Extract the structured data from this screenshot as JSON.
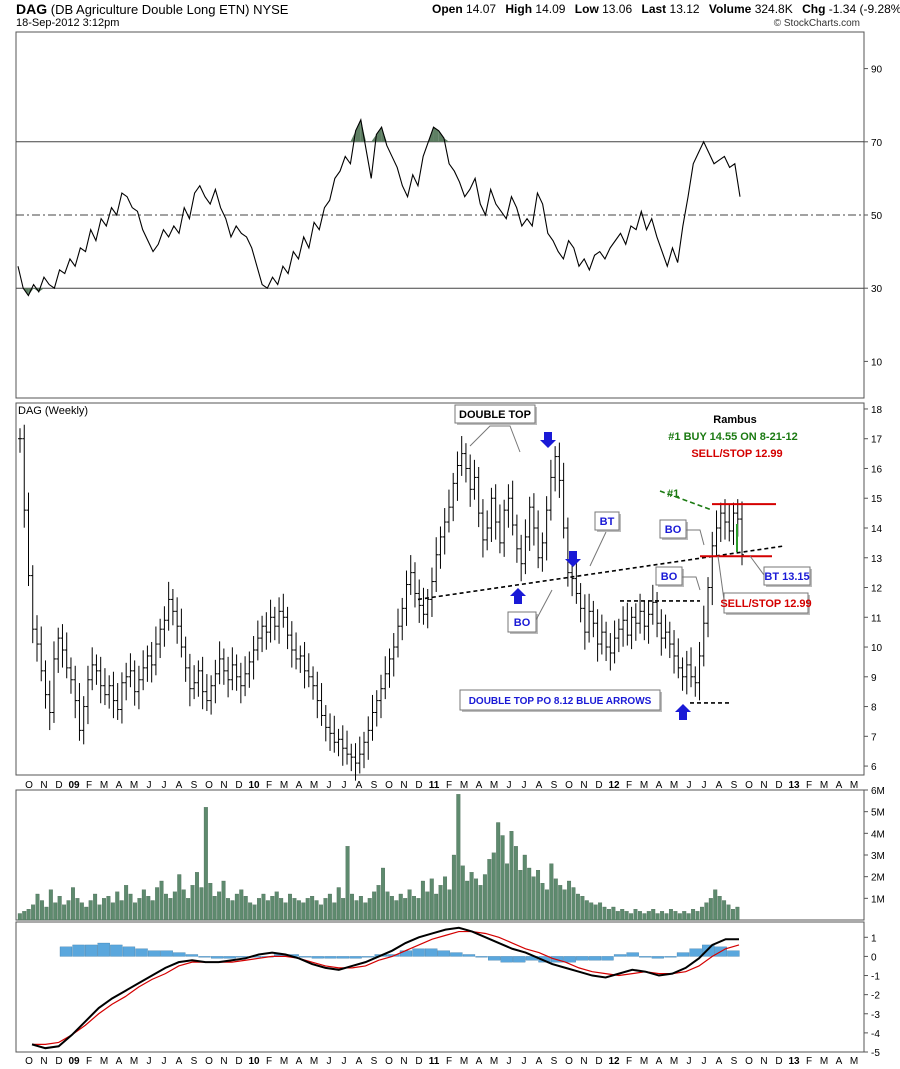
{
  "header": {
    "symbol": "DAG",
    "name": "(DB Agriculture Double Long ETN)",
    "exchange": "NYSE",
    "datetime": "18-Sep-2012 3:12pm",
    "open_label": "Open",
    "open": "14.07",
    "high_label": "High",
    "high": "14.09",
    "low_label": "Low",
    "low": "13.06",
    "last_label": "Last",
    "last": "13.12",
    "volume_label": "Volume",
    "volume": "324.8K",
    "chg_label": "Chg",
    "chg": "-1.34 (-9.28%)",
    "copyright": "© StockCharts.com"
  },
  "chart_data": [
    {
      "type": "line",
      "panel": "rsi",
      "ylim": [
        0,
        100
      ],
      "ticks": [
        "90",
        "70",
        "50",
        "30",
        "10"
      ],
      "tick_values": [
        90,
        70,
        50,
        30,
        10
      ],
      "ref_lines": [
        70,
        50,
        30
      ],
      "series": [
        {
          "values": [
            36,
            30,
            28,
            31,
            29,
            33,
            31,
            30,
            35,
            34,
            38,
            36,
            41,
            40,
            46,
            43,
            49,
            47,
            52,
            50,
            56,
            55,
            52,
            51,
            46,
            43,
            40,
            42,
            46,
            44,
            47,
            45,
            52,
            49,
            56,
            58,
            55,
            53,
            57,
            52,
            49,
            44,
            47,
            45,
            44,
            41,
            36,
            31,
            30,
            33,
            31,
            36,
            34,
            40,
            38,
            44,
            41,
            48,
            46,
            52,
            54,
            60,
            62,
            66,
            64,
            73,
            76,
            68,
            60,
            72,
            74,
            69,
            66,
            63,
            58,
            55,
            61,
            58,
            66,
            70,
            74,
            73,
            71,
            64,
            62,
            59,
            55,
            57,
            60,
            53,
            50,
            57,
            53,
            51,
            49,
            55,
            52,
            47,
            49,
            47,
            56,
            53,
            45,
            43,
            40,
            38,
            43,
            41,
            36,
            38,
            35,
            39,
            40,
            38,
            41,
            43,
            45,
            42,
            47,
            46,
            51,
            46,
            49,
            44,
            40,
            36,
            41,
            37,
            47,
            55,
            64,
            67,
            70,
            67,
            64,
            65,
            66,
            63,
            64,
            55
          ]
        }
      ]
    },
    {
      "type": "ohlc",
      "panel": "price",
      "title": "DAG (Weekly)",
      "ylim": [
        5.7,
        18.2
      ],
      "ticks": [
        "18",
        "17",
        "16",
        "15",
        "14",
        "13",
        "12",
        "11",
        "10",
        "9",
        "8",
        "7",
        "6"
      ],
      "tick_values": [
        18,
        17,
        16,
        15,
        14,
        13,
        12,
        11,
        10,
        9,
        8,
        7,
        6
      ],
      "x_labels": [
        "O",
        "N",
        "D",
        "09",
        "F",
        "M",
        "A",
        "M",
        "J",
        "J",
        "A",
        "S",
        "O",
        "N",
        "D",
        "10",
        "F",
        "M",
        "A",
        "M",
        "J",
        "J",
        "A",
        "S",
        "O",
        "N",
        "D",
        "11",
        "F",
        "M",
        "A",
        "M",
        "J",
        "J",
        "A",
        "S",
        "O",
        "N",
        "D",
        "12",
        "F",
        "M",
        "A",
        "M",
        "J",
        "J",
        "A",
        "S",
        "O",
        "N",
        "D",
        "13",
        "F",
        "M",
        "A",
        "M"
      ],
      "closes": [
        17.0,
        14.6,
        12.4,
        10.6,
        10.1,
        9.2,
        8.4,
        7.8,
        9.6,
        10.3,
        9.9,
        9.3,
        8.9,
        8.2,
        7.2,
        8.0,
        8.9,
        9.4,
        9.2,
        8.7,
        8.4,
        8.7,
        8.2,
        7.9,
        8.8,
        9.0,
        9.2,
        8.5,
        8.9,
        9.3,
        9.7,
        9.4,
        10.1,
        10.6,
        10.9,
        11.6,
        11.2,
        10.7,
        10.0,
        9.3,
        8.6,
        8.8,
        9.2,
        8.5,
        8.2,
        8.7,
        9.1,
        9.6,
        9.2,
        8.9,
        9.4,
        9.0,
        8.7,
        9.1,
        9.5,
        9.9,
        10.3,
        10.7,
        10.5,
        11.0,
        10.7,
        11.2,
        11.0,
        10.4,
        9.9,
        9.6,
        9.7,
        9.2,
        9.0,
        8.7,
        8.2,
        7.7,
        7.3,
        7.1,
        6.8,
        6.9,
        6.6,
        6.4,
        6.3,
        6.1,
        6.4,
        6.8,
        7.2,
        7.8,
        8.2,
        8.6,
        9.1,
        9.6,
        10.0,
        10.7,
        11.3,
        12.1,
        12.5,
        11.8,
        11.4,
        11.1,
        11.6,
        12.2,
        13.1,
        13.7,
        14.2,
        14.7,
        15.5,
        16.1,
        16.5,
        16.0,
        15.3,
        15.7,
        14.5,
        13.6,
        14.0,
        15.0,
        14.2,
        13.5,
        14.6,
        15.0,
        14.1,
        13.3,
        12.8,
        13.7,
        14.7,
        14.0,
        13.0,
        13.5,
        14.6,
        15.7,
        16.4,
        15.6,
        14.0,
        12.5,
        12.3,
        11.8,
        11.3,
        10.5,
        11.2,
        10.8,
        10.1,
        10.5,
        10.0,
        9.8,
        10.3,
        10.6,
        10.9,
        10.4,
        11.0,
        10.8,
        11.2,
        10.7,
        11.1,
        11.5,
        10.8,
        10.3,
        10.5,
        10.1,
        9.7,
        9.3,
        9.0,
        9.4,
        9.0,
        8.8,
        9.7,
        10.8,
        12.0,
        13.4,
        14.0,
        14.5,
        14.2,
        13.9,
        14.5,
        14.3,
        13.1
      ],
      "annotations": [
        {
          "text": "DOUBLE TOP",
          "color": "#000000"
        },
        {
          "text": "Rambus",
          "color": "#000000"
        },
        {
          "text": "#1   BUY 14.55 ON 8-21-12",
          "color": "#1b7a12"
        },
        {
          "text": "SELL/STOP 12.99",
          "color": "#d40000"
        },
        {
          "text": "#1",
          "color": "#1b7a12"
        },
        {
          "text": "BT",
          "color": "#1a1ad6"
        },
        {
          "text": "BO",
          "color": "#1a1ad6"
        },
        {
          "text": "BO",
          "color": "#1a1ad6"
        },
        {
          "text": "BO",
          "color": "#1a1ad6"
        },
        {
          "text": "BT 13.15",
          "color": "#1a1ad6"
        },
        {
          "text": "SELL/STOP 12.99",
          "color": "#d40000"
        },
        {
          "text": "DOUBLE TOP PO 8.12 BLUE ARROWS",
          "color": "#1a1ad6"
        }
      ],
      "level_lines": [
        {
          "style": "trendline",
          "from": 11.6,
          "to": 13.4,
          "color": "#000000"
        },
        {
          "style": "dashed",
          "value": 11.55,
          "color": "#000000"
        },
        {
          "style": "dashed",
          "value": 8.12,
          "color": "#000000"
        },
        {
          "style": "solid",
          "value": 14.8,
          "color": "#d40000"
        },
        {
          "style": "solid",
          "value": 13.05,
          "color": "#d40000"
        }
      ]
    },
    {
      "type": "bar",
      "panel": "volume",
      "ylim": [
        0,
        6
      ],
      "ticks": [
        "6M",
        "5M",
        "4M",
        "3M",
        "2M",
        "1M"
      ],
      "tick_values": [
        6,
        5,
        4,
        3,
        2,
        1
      ],
      "color": "#5e8a6e",
      "values": [
        0.3,
        0.4,
        0.5,
        0.7,
        1.2,
        0.9,
        0.6,
        1.4,
        0.8,
        1.1,
        0.7,
        0.9,
        1.5,
        1.0,
        0.8,
        0.6,
        0.9,
        1.2,
        0.7,
        1.0,
        1.1,
        0.8,
        1.3,
        0.9,
        1.6,
        1.2,
        0.8,
        1.0,
        1.4,
        1.1,
        0.9,
        1.5,
        1.8,
        1.2,
        1.0,
        1.3,
        2.1,
        1.4,
        1.0,
        1.6,
        2.2,
        1.5,
        5.2,
        1.7,
        1.1,
        1.3,
        1.8,
        1.0,
        0.9,
        1.2,
        1.4,
        1.1,
        0.8,
        0.7,
        1.0,
        1.2,
        0.9,
        1.1,
        1.3,
        1.0,
        0.8,
        1.2,
        1.0,
        0.9,
        0.8,
        1.0,
        1.1,
        0.9,
        0.7,
        1.0,
        1.2,
        0.8,
        1.5,
        1.0,
        3.4,
        1.2,
        0.9,
        1.1,
        0.8,
        1.0,
        1.3,
        1.6,
        2.4,
        1.3,
        1.1,
        0.9,
        1.2,
        1.0,
        1.4,
        1.1,
        1.0,
        1.8,
        1.3,
        1.9,
        1.2,
        1.6,
        2.0,
        1.4,
        3.0,
        5.8,
        2.5,
        1.8,
        2.2,
        1.9,
        1.6,
        2.1,
        2.8,
        3.1,
        4.5,
        3.9,
        2.6,
        4.1,
        3.4,
        2.3,
        3.0,
        2.4,
        2.0,
        2.3,
        1.7,
        1.4,
        2.6,
        1.9,
        1.6,
        1.4,
        1.8,
        1.5,
        1.2,
        1.1,
        0.9,
        0.8,
        0.7,
        0.8,
        0.6,
        0.5,
        0.6,
        0.4,
        0.5,
        0.4,
        0.3,
        0.5,
        0.4,
        0.3,
        0.4,
        0.5,
        0.3,
        0.4,
        0.3,
        0.5,
        0.4,
        0.3,
        0.4,
        0.3,
        0.5,
        0.4,
        0.6,
        0.8,
        1.0,
        1.4,
        1.1,
        0.9,
        0.7,
        0.5,
        0.6
      ]
    },
    {
      "type": "line",
      "panel": "macd",
      "ylim": [
        -5,
        1.8
      ],
      "ticks": [
        "1",
        "0",
        "-1",
        "-2",
        "-3",
        "-4",
        "-5"
      ],
      "tick_values": [
        1,
        0,
        -1,
        -2,
        -3,
        -4,
        -5
      ],
      "x_labels": [
        "O",
        "N",
        "D",
        "09",
        "F",
        "M",
        "A",
        "M",
        "J",
        "J",
        "A",
        "S",
        "O",
        "N",
        "D",
        "10",
        "F",
        "M",
        "A",
        "M",
        "J",
        "J",
        "A",
        "S",
        "O",
        "N",
        "D",
        "11",
        "F",
        "M",
        "A",
        "M",
        "J",
        "J",
        "A",
        "S",
        "O",
        "N",
        "D",
        "12",
        "F",
        "M",
        "A",
        "M",
        "J",
        "J",
        "A",
        "S",
        "O",
        "N",
        "D",
        "13",
        "F",
        "M",
        "A",
        "M"
      ],
      "series": [
        {
          "color": "#000000",
          "values": [
            -4.6,
            -4.8,
            -4.7,
            -4.1,
            -3.4,
            -2.7,
            -2.2,
            -1.8,
            -1.4,
            -1.0,
            -0.6,
            -0.3,
            -0.2,
            -0.3,
            -0.3,
            -0.2,
            -0.1,
            0.1,
            0.2,
            0.1,
            -0.1,
            -0.4,
            -0.6,
            -0.7,
            -0.5,
            -0.3,
            0.0,
            0.3,
            0.7,
            1.0,
            1.2,
            1.4,
            1.5,
            1.3,
            1.0,
            0.7,
            0.4,
            0.2,
            -0.1,
            -0.4,
            -0.6,
            -0.8,
            -1.0,
            -1.1,
            -0.9,
            -0.7,
            -0.8,
            -1.0,
            -0.9,
            -0.6,
            -0.1,
            0.6,
            0.9,
            0.9
          ]
        },
        {
          "color": "#d40000",
          "values": [
            -4.6,
            -4.6,
            -4.5,
            -4.1,
            -3.6,
            -3.0,
            -2.5,
            -2.1,
            -1.6,
            -1.2,
            -0.9,
            -0.5,
            -0.3,
            -0.3,
            -0.3,
            -0.3,
            -0.2,
            -0.1,
            0.0,
            0.0,
            -0.1,
            -0.3,
            -0.5,
            -0.6,
            -0.6,
            -0.5,
            -0.2,
            0.0,
            0.3,
            0.6,
            0.9,
            1.1,
            1.3,
            1.3,
            1.2,
            1.0,
            0.7,
            0.4,
            0.2,
            -0.1,
            -0.3,
            -0.6,
            -0.8,
            -0.9,
            -1.0,
            -0.9,
            -0.8,
            -0.9,
            -0.9,
            -0.8,
            -0.5,
            0.0,
            0.4,
            0.6
          ]
        },
        {
          "color": "#5aa7dd",
          "type": "histogram",
          "values": [
            0.5,
            0.6,
            0.6,
            0.7,
            0.6,
            0.5,
            0.4,
            0.3,
            0.3,
            0.2,
            0.1,
            0.0,
            -0.1,
            -0.1,
            0.0,
            0.0,
            0.0,
            0.1,
            0.1,
            0.0,
            -0.1,
            -0.1,
            -0.1,
            -0.1,
            0.0,
            0.1,
            0.1,
            0.3,
            0.4,
            0.4,
            0.3,
            0.2,
            0.1,
            0.0,
            -0.2,
            -0.3,
            -0.3,
            -0.2,
            -0.3,
            -0.3,
            -0.3,
            -0.2,
            -0.2,
            -0.2,
            0.1,
            0.2,
            0.0,
            -0.1,
            0.0,
            0.2,
            0.4,
            0.6,
            0.5,
            0.3
          ]
        }
      ]
    }
  ]
}
